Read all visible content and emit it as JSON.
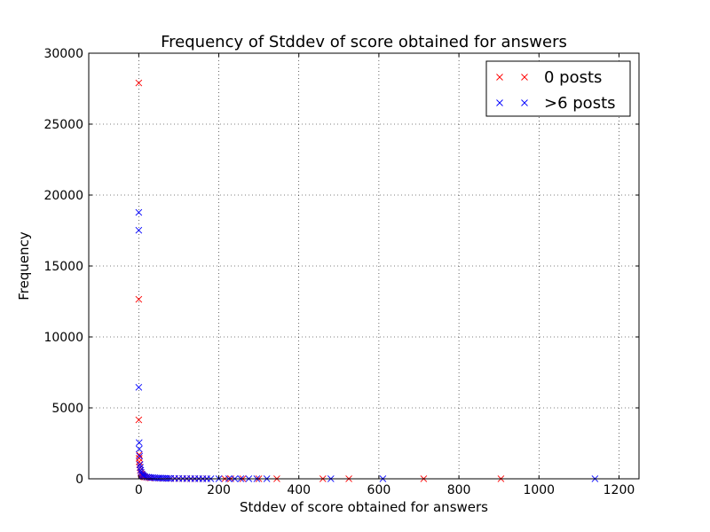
{
  "chart_data": {
    "type": "scatter",
    "title": "Frequency of Stddev of score obtained for answers",
    "xlabel": "Stddev of score obtained for answers",
    "ylabel": "Frequency",
    "xlim": [
      -125,
      1250
    ],
    "ylim": [
      0,
      30000
    ],
    "xticks": [
      0,
      200,
      400,
      600,
      800,
      1000,
      1200
    ],
    "yticks": [
      0,
      5000,
      10000,
      15000,
      20000,
      25000,
      30000
    ],
    "grid": true,
    "grid_style": "dotted",
    "legend_position": "upper right",
    "marker": "x",
    "series": [
      {
        "name": "0 posts",
        "color": "#ff0000",
        "points": [
          [
            0,
            27900
          ],
          [
            0,
            12650
          ],
          [
            0,
            4150
          ],
          [
            1,
            1700
          ],
          [
            1,
            1450
          ],
          [
            1,
            1200
          ],
          [
            2,
            1000
          ],
          [
            3,
            800
          ],
          [
            4,
            600
          ],
          [
            5,
            450
          ],
          [
            6,
            350
          ],
          [
            8,
            250
          ],
          [
            10,
            200
          ],
          [
            12,
            150
          ],
          [
            15,
            120
          ],
          [
            20,
            100
          ],
          [
            25,
            80
          ],
          [
            30,
            60
          ],
          [
            40,
            50
          ],
          [
            50,
            40
          ],
          [
            60,
            30
          ],
          [
            70,
            25
          ],
          [
            80,
            20
          ],
          [
            90,
            15
          ],
          [
            100,
            12
          ],
          [
            110,
            10
          ],
          [
            120,
            8
          ],
          [
            130,
            6
          ],
          [
            140,
            5
          ],
          [
            150,
            4
          ],
          [
            160,
            3
          ],
          [
            170,
            3
          ],
          [
            215,
            2
          ],
          [
            230,
            2
          ],
          [
            260,
            2
          ],
          [
            300,
            1
          ],
          [
            345,
            1
          ],
          [
            460,
            1
          ],
          [
            525,
            1
          ],
          [
            712,
            1
          ],
          [
            905,
            1
          ]
        ]
      },
      {
        "name": ">6 posts",
        "color": "#0000ff",
        "points": [
          [
            0,
            18780
          ],
          [
            0,
            17520
          ],
          [
            0,
            6450
          ],
          [
            1,
            2550
          ],
          [
            1,
            2100
          ],
          [
            2,
            1600
          ],
          [
            3,
            1000
          ],
          [
            4,
            800
          ],
          [
            5,
            600
          ],
          [
            6,
            450
          ],
          [
            8,
            320
          ],
          [
            10,
            250
          ],
          [
            12,
            200
          ],
          [
            15,
            160
          ],
          [
            20,
            130
          ],
          [
            25,
            110
          ],
          [
            30,
            90
          ],
          [
            35,
            80
          ],
          [
            40,
            70
          ],
          [
            45,
            60
          ],
          [
            50,
            55
          ],
          [
            55,
            50
          ],
          [
            60,
            45
          ],
          [
            65,
            40
          ],
          [
            70,
            35
          ],
          [
            75,
            30
          ],
          [
            80,
            28
          ],
          [
            90,
            25
          ],
          [
            100,
            20
          ],
          [
            110,
            18
          ],
          [
            120,
            15
          ],
          [
            130,
            12
          ],
          [
            140,
            10
          ],
          [
            150,
            8
          ],
          [
            160,
            6
          ],
          [
            170,
            5
          ],
          [
            180,
            4
          ],
          [
            200,
            3
          ],
          [
            225,
            3
          ],
          [
            240,
            2
          ],
          [
            255,
            2
          ],
          [
            275,
            2
          ],
          [
            295,
            1
          ],
          [
            320,
            1
          ],
          [
            480,
            1
          ],
          [
            610,
            1
          ],
          [
            1140,
            1
          ]
        ]
      }
    ]
  }
}
